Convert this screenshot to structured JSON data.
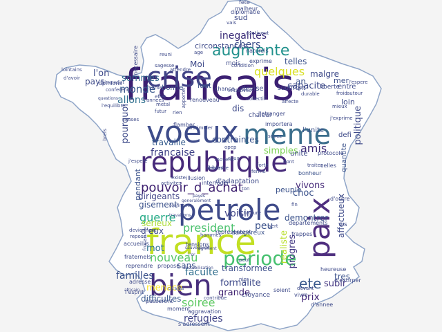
{
  "title": "France word cloud",
  "words": [
    {
      "t": "francais",
      "c": "#3b1f72"
    },
    {
      "t": "voeux",
      "c": "#3e4c8a"
    },
    {
      "t": "meme",
      "c": "#3b6e8c"
    },
    {
      "t": "crise",
      "c": "#414487"
    },
    {
      "t": "republique",
      "c": "#472a7a"
    },
    {
      "t": "france",
      "c": "#c2df23"
    },
    {
      "t": "petrole",
      "c": "#3e4a89"
    },
    {
      "t": "bien",
      "c": "#472e7c"
    },
    {
      "t": "paix",
      "c": "#4f2f7f"
    },
    {
      "t": "periode",
      "c": "#46c06f"
    },
    {
      "t": "augmente",
      "c": "#21918c"
    },
    {
      "t": "quelques",
      "c": "#d9e021"
    },
    {
      "t": "pouvoir_d_achat",
      "c": "#3d1f6f"
    },
    {
      "t": "president",
      "c": "#4ac16d"
    },
    {
      "t": "guerre",
      "c": "#22a884"
    },
    {
      "t": "monde",
      "c": "#38588c"
    },
    {
      "t": "allons",
      "c": "#2e6f8e"
    },
    {
      "t": "francaise",
      "c": "#404387"
    },
    {
      "t": "dirigeants",
      "c": "#414487"
    },
    {
      "t": "ete",
      "c": "#38588c"
    },
    {
      "t": "inegalites",
      "c": "#3a2c78"
    },
    {
      "t": "faculte",
      "c": "#2f6e8d"
    },
    {
      "t": "chers",
      "c": "#3c4e8a"
    },
    {
      "t": "sommes",
      "c": "#31688e"
    },
    {
      "t": "soiree",
      "c": "#5ec962"
    },
    {
      "t": "nouveau",
      "c": "#56c667"
    },
    {
      "t": "familles",
      "c": "#3b528b"
    },
    {
      "t": "refugies",
      "c": "#414487"
    },
    {
      "t": "prix",
      "c": "#472c7a"
    },
    {
      "t": "subir",
      "c": "#453781"
    },
    {
      "t": "choc",
      "c": "#3b528b"
    },
    {
      "t": "amis",
      "c": "#3e2a76"
    },
    {
      "t": "travaille",
      "c": "#365c8d"
    },
    {
      "t": "contraintes",
      "c": "#3b528b"
    },
    {
      "t": "simples",
      "c": "#7ad151"
    },
    {
      "t": "pourquoi",
      "c": "#3e4a89"
    },
    {
      "t": "politique",
      "c": "#3e4a89"
    },
    {
      "t": "voisin",
      "c": "#414487"
    },
    {
      "t": "vivons",
      "c": "#472c7a"
    },
    {
      "t": "peu",
      "c": "#3b528b"
    },
    {
      "t": "serieux",
      "c": "#aadc32"
    },
    {
      "t": "realiste",
      "c": "#b8de29"
    },
    {
      "t": "progres",
      "c": "#443983"
    },
    {
      "t": "affectueux",
      "c": "#3e4a89"
    },
    {
      "t": "mot",
      "c": "#2c728e"
    },
    {
      "t": "difficultes",
      "c": "#38588c"
    },
    {
      "t": "formalite",
      "c": "#3e4a89"
    },
    {
      "t": "grande",
      "c": "#3d1f6f"
    },
    {
      "t": "transformee",
      "c": "#3c4e8a"
    },
    {
      "t": "sans",
      "c": "#3b528b"
    },
    {
      "t": "menace",
      "c": "#fde725"
    },
    {
      "t": "capacite",
      "c": "#3e4a89"
    },
    {
      "t": "malgre",
      "c": "#3e4a89"
    },
    {
      "t": "mer",
      "c": "#3c4e8a"
    },
    {
      "t": "l'on",
      "c": "#3e4a89"
    },
    {
      "t": "gisement",
      "c": "#3b528b"
    },
    {
      "t": "demontrer",
      "c": "#3b528b"
    },
    {
      "t": "entre",
      "c": "#3e4a89"
    },
    {
      "t": "tres",
      "c": "#3b528b"
    },
    {
      "t": "pays",
      "c": "#3e4a89"
    },
    {
      "t": "loin",
      "c": "#3e4a89"
    },
    {
      "t": "telles",
      "c": "#3b528b"
    },
    {
      "t": "sud",
      "c": "#3e4a89"
    },
    {
      "t": "defi",
      "c": "#3e4a89"
    },
    {
      "t": "Moi",
      "c": "#3e4a89"
    },
    {
      "t": "an",
      "c": "#3b528b"
    },
    {
      "t": "dis",
      "c": "#3e4a89"
    },
    {
      "t": "unite",
      "c": "#3e4a89"
    },
    {
      "t": "d'eux",
      "c": "#3e4a89"
    },
    {
      "t": "peuple",
      "c": "#3b528b"
    },
    {
      "t": "circonstances",
      "c": "#3e4a89"
    },
    {
      "t": "pendant",
      "c": "#3b528b"
    },
    {
      "t": "d'adaptation",
      "c": "#3e4a89"
    },
    {
      "t": "l'unite",
      "c": "#3b528b"
    },
    {
      "t": "fete",
      "c": "#3e4a89"
    },
    {
      "t": "malheur",
      "c": "#3e4a89"
    },
    {
      "t": "diplomatie",
      "c": "#3e4a89"
    },
    {
      "t": "exprime",
      "c": "#3e4a89"
    },
    {
      "t": "naturels",
      "c": "#3e4a89"
    },
    {
      "t": "mois",
      "c": "#3e4a89"
    },
    {
      "t": "bonne",
      "c": "#3b528b"
    },
    {
      "t": "faut",
      "c": "#3b528b"
    },
    {
      "t": "devise",
      "c": "#3e4a89"
    },
    {
      "t": "souffrent",
      "c": "#3e4a89"
    },
    {
      "t": "liberte",
      "c": "#3e4a89"
    },
    {
      "t": "chaleur",
      "c": "#3e4a89"
    },
    {
      "t": "protocole",
      "c": "#3e4a89"
    },
    {
      "t": "quantite",
      "c": "#3b528b"
    },
    {
      "t": "celles",
      "c": "#3e4a89"
    },
    {
      "t": "bonheur",
      "c": "#3b528b"
    },
    {
      "t": "d'outre",
      "c": "#3e4a89"
    },
    {
      "t": "departements",
      "c": "#3e4a89"
    },
    {
      "t": "frappes",
      "c": "#3e4a89"
    },
    {
      "t": "vis",
      "c": "#3e4a89"
    },
    {
      "t": "representent",
      "c": "#3e4a89"
    },
    {
      "t": "dangereux",
      "c": "#3b528b"
    },
    {
      "t": "accueillis",
      "c": "#3e4a89"
    },
    {
      "t": "fraternels",
      "c": "#3e4a89"
    },
    {
      "t": "reprendre",
      "c": "#3e4a89"
    },
    {
      "t": "propose",
      "c": "#3e4a89"
    },
    {
      "t": "adresse",
      "c": "#3e4a89"
    },
    {
      "t": "passeront",
      "c": "#3e4a89"
    },
    {
      "t": "moment",
      "c": "#3e4a89"
    },
    {
      "t": "s'adressent",
      "c": "#3e4a89"
    },
    {
      "t": "d'annee",
      "c": "#3e4a89"
    },
    {
      "t": "vivre",
      "c": "#3e4a89"
    },
    {
      "t": "soient",
      "c": "#3e4a89"
    },
    {
      "t": "heureuse",
      "c": "#3e4a89"
    },
    {
      "t": "d'extirper",
      "c": "#3e4a89"
    },
    {
      "t": "tensions",
      "c": "#3e4a89"
    },
    {
      "t": "croyance",
      "c": "#3e4a89"
    },
    {
      "t": "l'esprit",
      "c": "#3e4a89"
    },
    {
      "t": "aggravation",
      "c": "#3e4a89"
    },
    {
      "t": "contribue",
      "c": "#3e4a89"
    },
    {
      "t": "illusion",
      "c": "#3e4a89"
    },
    {
      "t": "existe",
      "c": "#3e4a89"
    },
    {
      "t": "activites",
      "c": "#3e4a89"
    },
    {
      "t": "interroger",
      "c": "#3e4a89"
    },
    {
      "t": "importera",
      "c": "#3e4a89"
    },
    {
      "t": "dissimuler",
      "c": "#3e4a89"
    },
    {
      "t": "flamber",
      "c": "#3e4a89"
    },
    {
      "t": "l'etranger",
      "c": "#3e4a89"
    },
    {
      "t": "attendre",
      "c": "#3e4a89"
    },
    {
      "t": "sagesse",
      "c": "#3e4a89"
    },
    {
      "t": "opinions",
      "c": "#3e4a89"
    },
    {
      "t": "conference",
      "c": "#3e4a89"
    },
    {
      "t": "l'immediat",
      "c": "#3e4a89"
    },
    {
      "t": "d'avoir",
      "c": "#3e4a89"
    },
    {
      "t": "questions",
      "c": "#3e4a89"
    },
    {
      "t": "l'equilibre",
      "c": "#3e4a89"
    },
    {
      "t": "necessaire",
      "c": "#3e4a89"
    },
    {
      "t": "reuni",
      "c": "#3e4a89"
    },
    {
      "t": "age",
      "c": "#3e4a89"
    },
    {
      "t": "continent",
      "c": "#3e4a89"
    },
    {
      "t": "vais",
      "c": "#3e4a89"
    },
    {
      "t": "condition",
      "c": "#3e4a89"
    },
    {
      "t": "durable",
      "c": "#3e4a89"
    },
    {
      "t": "chance",
      "c": "#3e4a89"
    },
    {
      "t": "apporter",
      "c": "#3e4a89"
    },
    {
      "t": "collectif",
      "c": "#3e4a89"
    },
    {
      "t": "affecte",
      "c": "#3e4a89"
    },
    {
      "t": "froid",
      "c": "#3e4a89"
    },
    {
      "t": "mieux",
      "c": "#3e4a89"
    },
    {
      "t": "lointains",
      "c": "#3e4a89"
    },
    {
      "t": "rien",
      "c": "#3e4a89"
    },
    {
      "t": "metal",
      "c": "#3e4a89"
    },
    {
      "t": "futur",
      "c": "#3e4a89"
    },
    {
      "t": "effet",
      "c": "#3e4a89"
    },
    {
      "t": "annees",
      "c": "#3e4a89"
    },
    {
      "t": "j'exprime",
      "c": "#3e4a89"
    },
    {
      "t": "Sante",
      "c": "#3e4a89"
    },
    {
      "t": "autour",
      "c": "#3e4a89"
    },
    {
      "t": "traites",
      "c": "#3e4a89"
    },
    {
      "t": "causes",
      "c": "#3e4a89"
    },
    {
      "t": "j'espere",
      "c": "#3e4a89"
    },
    {
      "t": "brefs",
      "c": "#3e4a89"
    },
    {
      "t": "generalement",
      "c": "#3e4a89"
    },
    {
      "t": "payes",
      "c": "#3e4a89"
    },
    {
      "t": "confirmee",
      "c": "#3e4a89"
    },
    {
      "t": "travaillons",
      "c": "#3e4a89"
    },
    {
      "t": "deviennent",
      "c": "#3e4a89"
    },
    {
      "t": "repose",
      "c": "#3e4a89"
    },
    {
      "t": "frncais",
      "c": "#3e4a89"
    },
    {
      "t": "signifient",
      "c": "#3e4a89"
    },
    {
      "t": "sauvegarde",
      "c": "#3e4a89"
    },
    {
      "t": "l'or",
      "c": "#3e4a89"
    },
    {
      "t": "hommes",
      "c": "#3e4a89"
    },
    {
      "t": "destabilisation",
      "c": "#3e4a89"
    },
    {
      "t": "caracas",
      "c": "#3e4a89"
    },
    {
      "t": "africain",
      "c": "#3e4a89"
    },
    {
      "t": "l'espere",
      "c": "#3e4a89"
    },
    {
      "t": "fin",
      "c": "#3e4a89"
    },
    {
      "t": "facture",
      "c": "#3e4a89"
    },
    {
      "t": "sert",
      "c": "#3e4a89"
    },
    {
      "t": "nier",
      "c": "#3e4a89"
    },
    {
      "t": "devant",
      "c": "#3e4a89"
    },
    {
      "t": "peut",
      "c": "#3e4a89"
    },
    {
      "t": "ton",
      "c": "#3e4a89"
    },
    {
      "t": "forte",
      "c": "#3e4a89"
    },
    {
      "t": "opep",
      "c": "#3e4a89"
    },
    {
      "t": "ceux",
      "c": "#3e4a89"
    },
    {
      "t": "dont",
      "c": "#3e4a89"
    },
    {
      "t": "moyens",
      "c": "#3e4a89"
    },
    {
      "t": "soyez",
      "c": "#3e4a89"
    },
    {
      "t": "ferme",
      "c": "#3e4a89"
    },
    {
      "t": "renouveau",
      "c": "#3e4a89"
    },
    {
      "t": "initiatives",
      "c": "#3e4a89"
    },
    {
      "t": "desordre",
      "c": "#3e4a89"
    },
    {
      "t": "don",
      "c": "#3e4a89"
    },
    {
      "t": "faibles",
      "c": "#3e4a89"
    }
  ]
}
